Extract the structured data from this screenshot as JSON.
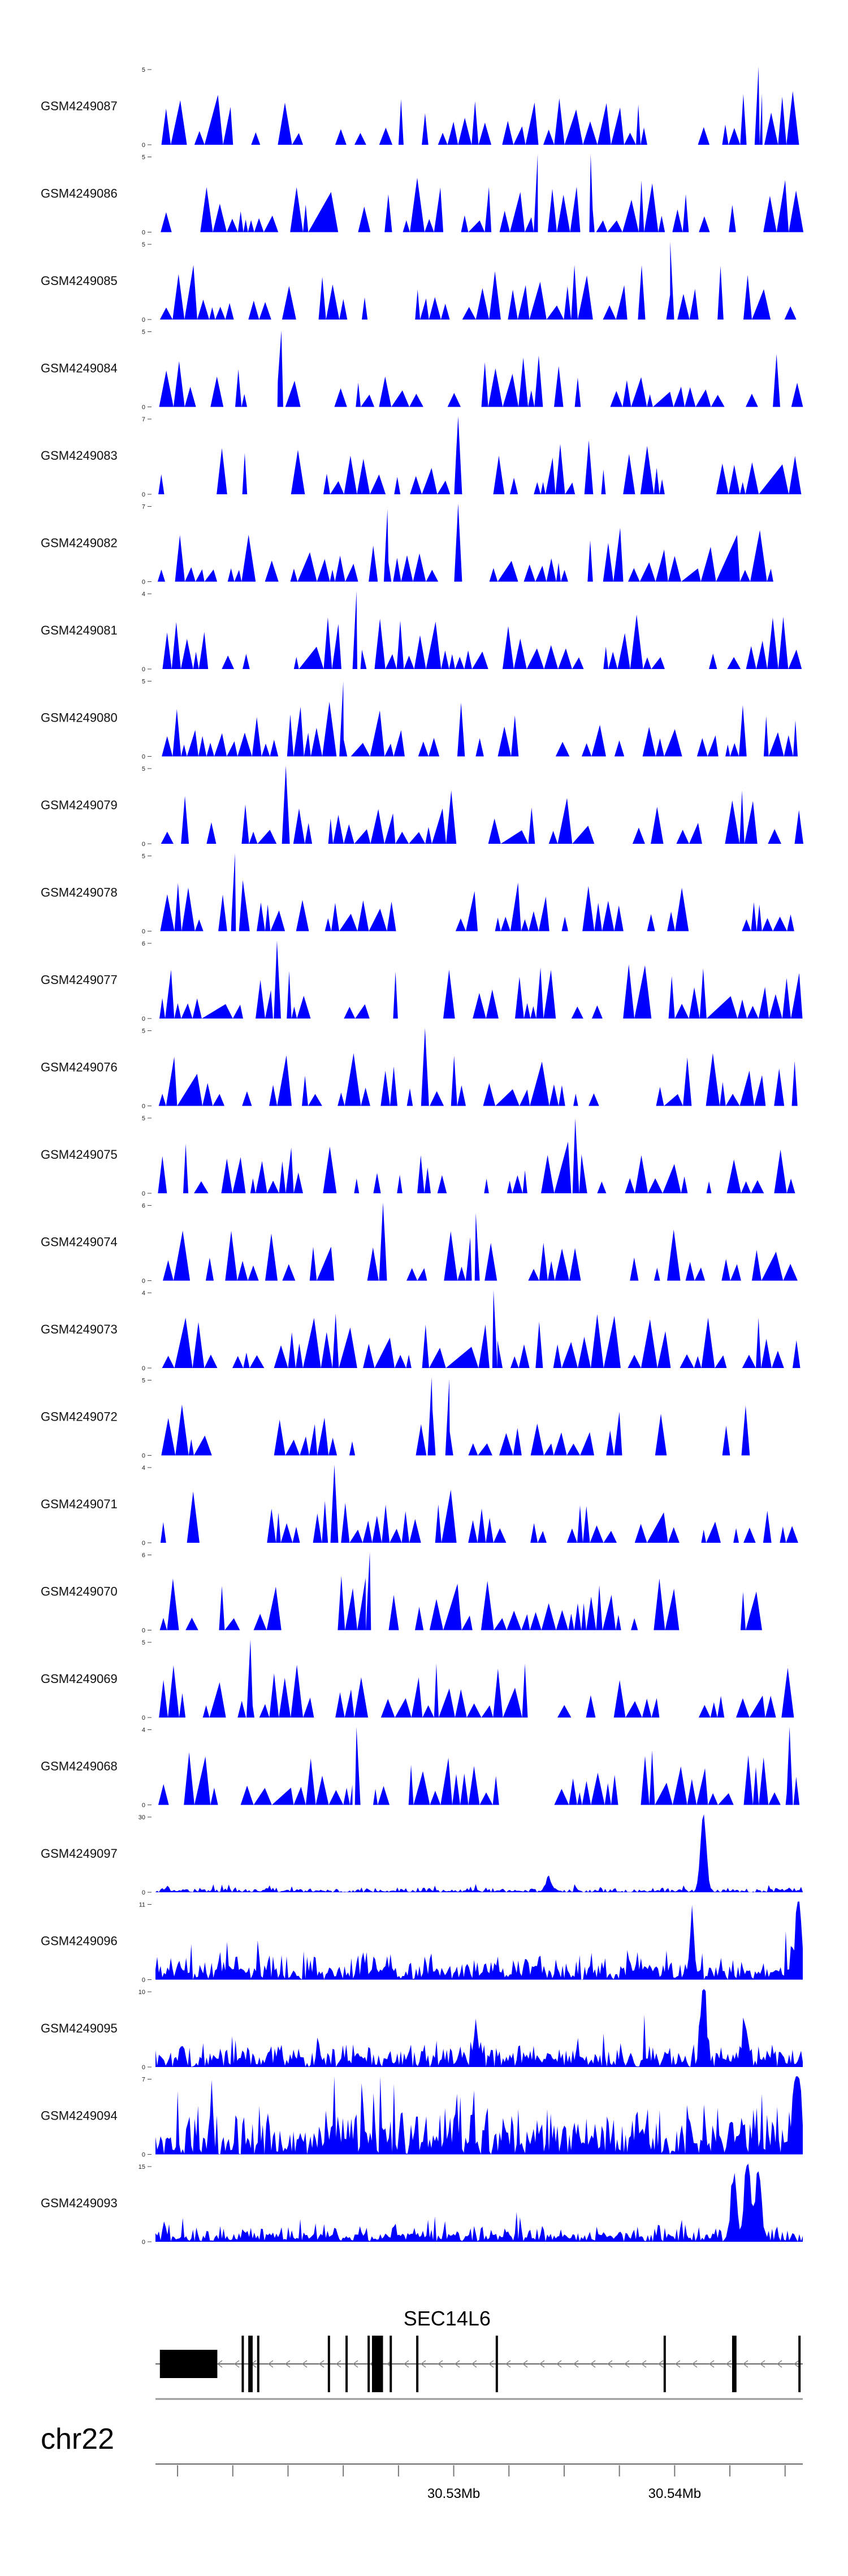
{
  "chart_data": {
    "type": "area",
    "fill_color": "#0000ff",
    "x_range": [
      30.5165,
      30.5458
    ],
    "tracks": [
      {
        "name": "GSM4249087",
        "ymax": 5,
        "seed": 11,
        "style": "spiky",
        "density": 70,
        "peaks": [
          [
            30.5438,
            5
          ]
        ]
      },
      {
        "name": "GSM4249086",
        "ymax": 5,
        "seed": 12,
        "style": "spiky",
        "density": 55,
        "peaks": [
          [
            30.5338,
            5
          ],
          [
            30.5362,
            5
          ]
        ]
      },
      {
        "name": "GSM4249085",
        "ymax": 5,
        "seed": 13,
        "style": "spiky",
        "density": 70,
        "peaks": [
          [
            30.5398,
            5
          ]
        ]
      },
      {
        "name": "GSM4249084",
        "ymax": 5,
        "seed": 14,
        "style": "spiky",
        "density": 65,
        "peaks": [
          [
            30.5222,
            4.9
          ]
        ]
      },
      {
        "name": "GSM4249083",
        "ymax": 7,
        "seed": 15,
        "style": "spiky",
        "density": 70,
        "peaks": [
          [
            30.5302,
            7
          ]
        ]
      },
      {
        "name": "GSM4249082",
        "ymax": 7,
        "seed": 16,
        "style": "spiky",
        "density": 65,
        "peaks": [
          [
            30.5302,
            7
          ],
          [
            30.527,
            6.5
          ]
        ]
      },
      {
        "name": "GSM4249081",
        "ymax": 4,
        "seed": 17,
        "style": "spiky",
        "density": 80,
        "peaks": [
          [
            30.5256,
            4
          ]
        ]
      },
      {
        "name": "GSM4249080",
        "ymax": 5,
        "seed": 18,
        "style": "spiky",
        "density": 70,
        "peaks": [
          [
            30.525,
            4.8
          ]
        ]
      },
      {
        "name": "GSM4249079",
        "ymax": 5,
        "seed": 19,
        "style": "spiky",
        "density": 45,
        "peaks": [
          [
            30.5224,
            5
          ]
        ]
      },
      {
        "name": "GSM4249078",
        "ymax": 5,
        "seed": 20,
        "style": "spiky",
        "density": 70,
        "peaks": [
          [
            30.5201,
            5
          ]
        ]
      },
      {
        "name": "GSM4249077",
        "ymax": 6,
        "seed": 21,
        "style": "spiky",
        "density": 75,
        "peaks": [
          [
            30.522,
            6
          ]
        ]
      },
      {
        "name": "GSM4249076",
        "ymax": 5,
        "seed": 22,
        "style": "spiky",
        "density": 70,
        "peaks": [
          [
            30.5287,
            5
          ]
        ]
      },
      {
        "name": "GSM4249075",
        "ymax": 5,
        "seed": 23,
        "style": "spiky",
        "density": 65,
        "peaks": [
          [
            30.5355,
            4.8
          ]
        ]
      },
      {
        "name": "GSM4249074",
        "ymax": 6,
        "seed": 24,
        "style": "spiky",
        "density": 65,
        "peaks": [
          [
            30.5268,
            6
          ],
          [
            30.531,
            5.2
          ]
        ]
      },
      {
        "name": "GSM4249073",
        "ymax": 4,
        "seed": 25,
        "style": "spiky",
        "density": 75,
        "peaks": [
          [
            30.5318,
            4
          ]
        ]
      },
      {
        "name": "GSM4249072",
        "ymax": 5,
        "seed": 26,
        "style": "spiky",
        "density": 75,
        "peaks": [
          [
            30.529,
            5
          ],
          [
            30.5298,
            4.9
          ]
        ]
      },
      {
        "name": "GSM4249071",
        "ymax": 4,
        "seed": 27,
        "style": "spiky",
        "density": 55,
        "peaks": [
          [
            30.5246,
            4
          ]
        ]
      },
      {
        "name": "GSM4249070",
        "ymax": 6,
        "seed": 28,
        "style": "spiky",
        "density": 75,
        "peaks": [
          [
            30.5262,
            6
          ]
        ]
      },
      {
        "name": "GSM4249069",
        "ymax": 5,
        "seed": 29,
        "style": "spiky",
        "density": 75,
        "peaks": [
          [
            30.5208,
            5
          ]
        ]
      },
      {
        "name": "GSM4249068",
        "ymax": 4,
        "seed": 30,
        "style": "spiky",
        "density": 65,
        "peaks": [
          [
            30.5256,
            4
          ],
          [
            30.5452,
            4
          ]
        ]
      },
      {
        "name": "GSM4249097",
        "ymax": 30,
        "seed": 31,
        "style": "dense",
        "noise": 1.5,
        "peaks": [
          [
            30.5413,
            30
          ],
          [
            30.5343,
            5
          ]
        ]
      },
      {
        "name": "GSM4249096",
        "ymax": 11,
        "seed": 32,
        "style": "dense",
        "noise": 3,
        "peaks": [
          [
            30.5456,
            11
          ],
          [
            30.5408,
            4.5
          ]
        ]
      },
      {
        "name": "GSM4249095",
        "ymax": 10,
        "seed": 33,
        "style": "dense",
        "noise": 2.5,
        "peaks": [
          [
            30.5413,
            10
          ],
          [
            30.5432,
            4.5
          ],
          [
            30.531,
            3.5
          ]
        ]
      },
      {
        "name": "GSM4249094",
        "ymax": 7,
        "seed": 34,
        "style": "dense",
        "noise": 3.5,
        "peaks": [
          [
            30.5456,
            7
          ]
        ]
      },
      {
        "name": "GSM4249093",
        "ymax": 15,
        "seed": 35,
        "style": "dense",
        "noise": 2.5,
        "peaks": [
          [
            30.5433,
            15
          ],
          [
            30.5427,
            12
          ],
          [
            30.5438,
            13
          ]
        ]
      }
    ],
    "gene": {
      "name": "SEC14L6",
      "strand": "-",
      "start": 30.5165,
      "end": 30.5458,
      "exons": [
        [
          30.5167,
          30.5193
        ],
        [
          30.5204,
          30.5205
        ],
        [
          30.5207,
          30.5209
        ],
        [
          30.5211,
          30.5212
        ],
        [
          30.5243,
          30.5244
        ],
        [
          30.5251,
          30.5252
        ],
        [
          30.5261,
          30.5262
        ],
        [
          30.5263,
          30.5268
        ],
        [
          30.5271,
          30.5272
        ],
        [
          30.5283,
          30.5284
        ],
        [
          30.5319,
          30.532
        ],
        [
          30.5395,
          30.5396
        ],
        [
          30.5426,
          30.5428
        ],
        [
          30.5456,
          30.5457
        ]
      ]
    },
    "chromosome": "chr22",
    "axis": {
      "ticks_minor_step": 0.0025,
      "labeled_ticks": [
        30.53,
        30.54
      ],
      "tick_labels": [
        "30.53Mb",
        "30.54Mb"
      ]
    }
  }
}
